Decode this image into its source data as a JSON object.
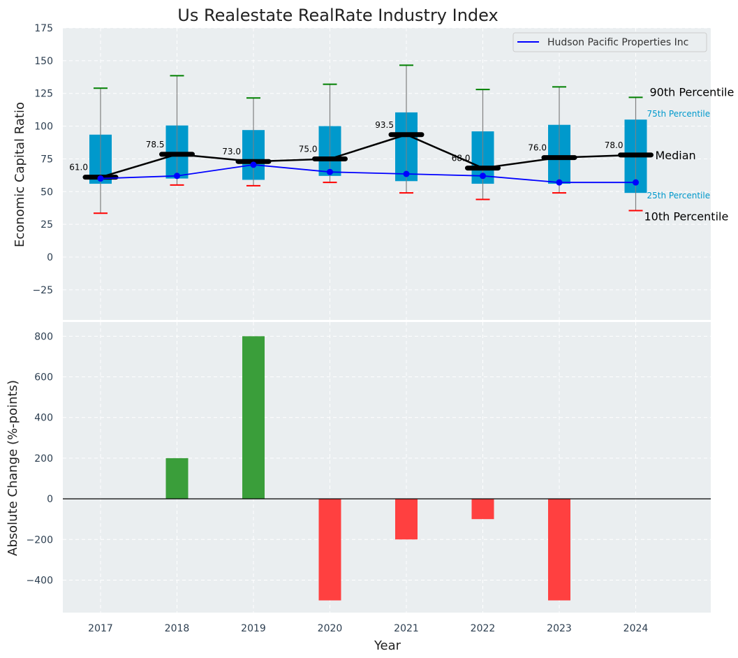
{
  "chart_data": [
    {
      "type": "box",
      "title": "Us Realestate RealRate Industry Index",
      "xlabel": "",
      "ylabel": "Economic Capital Ratio",
      "ylim": [
        -48,
        175
      ],
      "yticks": [
        -25,
        0,
        25,
        50,
        75,
        100,
        125,
        150,
        175
      ],
      "ytick_labels": [
        "−25",
        "0",
        "25",
        "50",
        "75",
        "100",
        "125",
        "150",
        "175"
      ],
      "grid": true,
      "categories": [
        "2017",
        "2018",
        "2019",
        "2020",
        "2021",
        "2022",
        "2023",
        "2024"
      ],
      "percentiles": {
        "p10": [
          33.5,
          55,
          54.5,
          57,
          49,
          44,
          49,
          35.5
        ],
        "p25": [
          56,
          60,
          59,
          62,
          58,
          56,
          56,
          49
        ],
        "median": [
          61.0,
          78.5,
          73.0,
          75.0,
          93.5,
          68.0,
          76.0,
          78.0
        ],
        "p75": [
          93.5,
          100.5,
          97,
          100,
          110.5,
          96,
          101,
          105
        ],
        "p90": [
          129,
          138.5,
          121.5,
          132,
          146.5,
          128,
          130,
          122
        ]
      },
      "median_labels": [
        "61.0",
        "78.5",
        "73.0",
        "75.0",
        "93.5",
        "68.0",
        "76.0",
        "78.0"
      ],
      "series": [
        {
          "name": "Hudson Pacific Properties Inc",
          "values": [
            60,
            62,
            70.5,
            65,
            63.5,
            62,
            57,
            57
          ],
          "color": "#0000ff"
        }
      ],
      "legend": {
        "placement": "top-right",
        "entries": [
          "Hudson Pacific Properties Inc"
        ]
      },
      "annotations": {
        "p90": "90th Percentile",
        "p75": "75th Percentile",
        "median": "Median",
        "p25": "25th Percentile",
        "p10": "10th Percentile"
      },
      "colors": {
        "box": "#0099cc",
        "p90_cap": "#008000",
        "p10_cap": "#ff0000",
        "median": "#000000",
        "whisker": "#808080",
        "background": "#eaeef0"
      }
    },
    {
      "type": "bar",
      "xlabel": "Year",
      "ylabel": "Absolute Change (%-points)",
      "ylim": [
        -560,
        870
      ],
      "yticks": [
        -400,
        -200,
        0,
        200,
        400,
        600,
        800
      ],
      "ytick_labels": [
        "−400",
        "−200",
        "0",
        "200",
        "400",
        "600",
        "800"
      ],
      "grid": true,
      "categories": [
        "2017",
        "2018",
        "2019",
        "2020",
        "2021",
        "2022",
        "2023",
        "2024"
      ],
      "values": [
        0,
        200,
        800,
        -500,
        -200,
        -100,
        -500,
        0
      ],
      "colors": {
        "positive": "#3a9e3a",
        "negative": "#ff4040"
      }
    }
  ]
}
